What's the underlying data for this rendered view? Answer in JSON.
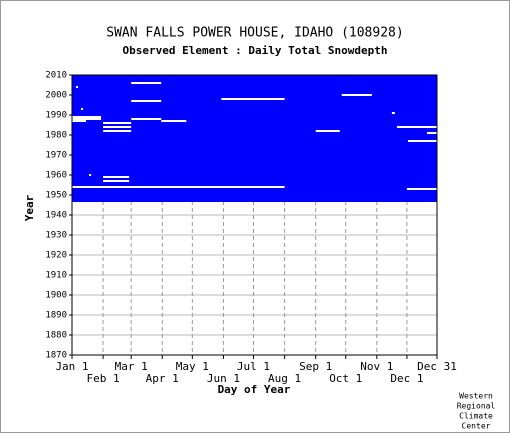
{
  "chart_data": {
    "type": "coverage",
    "title": "SWAN FALLS POWER HOUSE, IDAHO   (108928)",
    "subtitle": "Observed Element : Daily Total Snowdepth",
    "x_label": "Day of Year",
    "y_label": "Year",
    "credit": [
      "Western",
      "Regional",
      "Climate",
      "Center"
    ],
    "xlim": [
      1,
      365
    ],
    "ylim": [
      1870,
      2010
    ],
    "xticks": [
      {
        "value": 1,
        "label": "Jan 1"
      },
      {
        "value": 32,
        "label": "Feb 1"
      },
      {
        "value": 60,
        "label": "Mar 1"
      },
      {
        "value": 91,
        "label": "Apr 1"
      },
      {
        "value": 121,
        "label": "May 1"
      },
      {
        "value": 152,
        "label": "Jun 1"
      },
      {
        "value": 182,
        "label": "Jul 1"
      },
      {
        "value": 213,
        "label": "Aug 1"
      },
      {
        "value": 244,
        "label": "Sep 1"
      },
      {
        "value": 274,
        "label": "Oct 1"
      },
      {
        "value": 305,
        "label": "Nov 1"
      },
      {
        "value": 335,
        "label": "Dec 1"
      },
      {
        "value": 365,
        "label": "Dec 31"
      }
    ],
    "yticks": [
      1870,
      1880,
      1890,
      1900,
      1910,
      1920,
      1930,
      1940,
      1950,
      1960,
      1970,
      1980,
      1990,
      2000,
      2010
    ],
    "grid": true,
    "observed": {
      "color": "#0000ff",
      "year_from": 1947,
      "year_to": 2010,
      "day_from": 1,
      "day_to": 365
    },
    "gaps": {
      "color": "#ffffff",
      "year": [
        1989,
        1988,
        1987,
        1986,
        1984,
        1982,
        1988,
        1987,
        2006,
        1997,
        1998,
        2000,
        1982,
        1984,
        1977,
        1981,
        1959,
        1957,
        1954,
        1953,
        2004,
        1993,
        1991,
        1960
      ],
      "day_from": [
        1,
        1,
        1,
        32,
        32,
        32,
        60,
        90,
        60,
        60,
        150,
        270,
        244,
        325,
        336,
        355,
        32,
        32,
        1,
        335,
        5,
        10,
        320,
        18
      ],
      "day_to": [
        30,
        30,
        15,
        60,
        60,
        60,
        90,
        115,
        90,
        90,
        213,
        300,
        268,
        365,
        365,
        365,
        58,
        58,
        213,
        365,
        7,
        12,
        323,
        20
      ]
    }
  }
}
